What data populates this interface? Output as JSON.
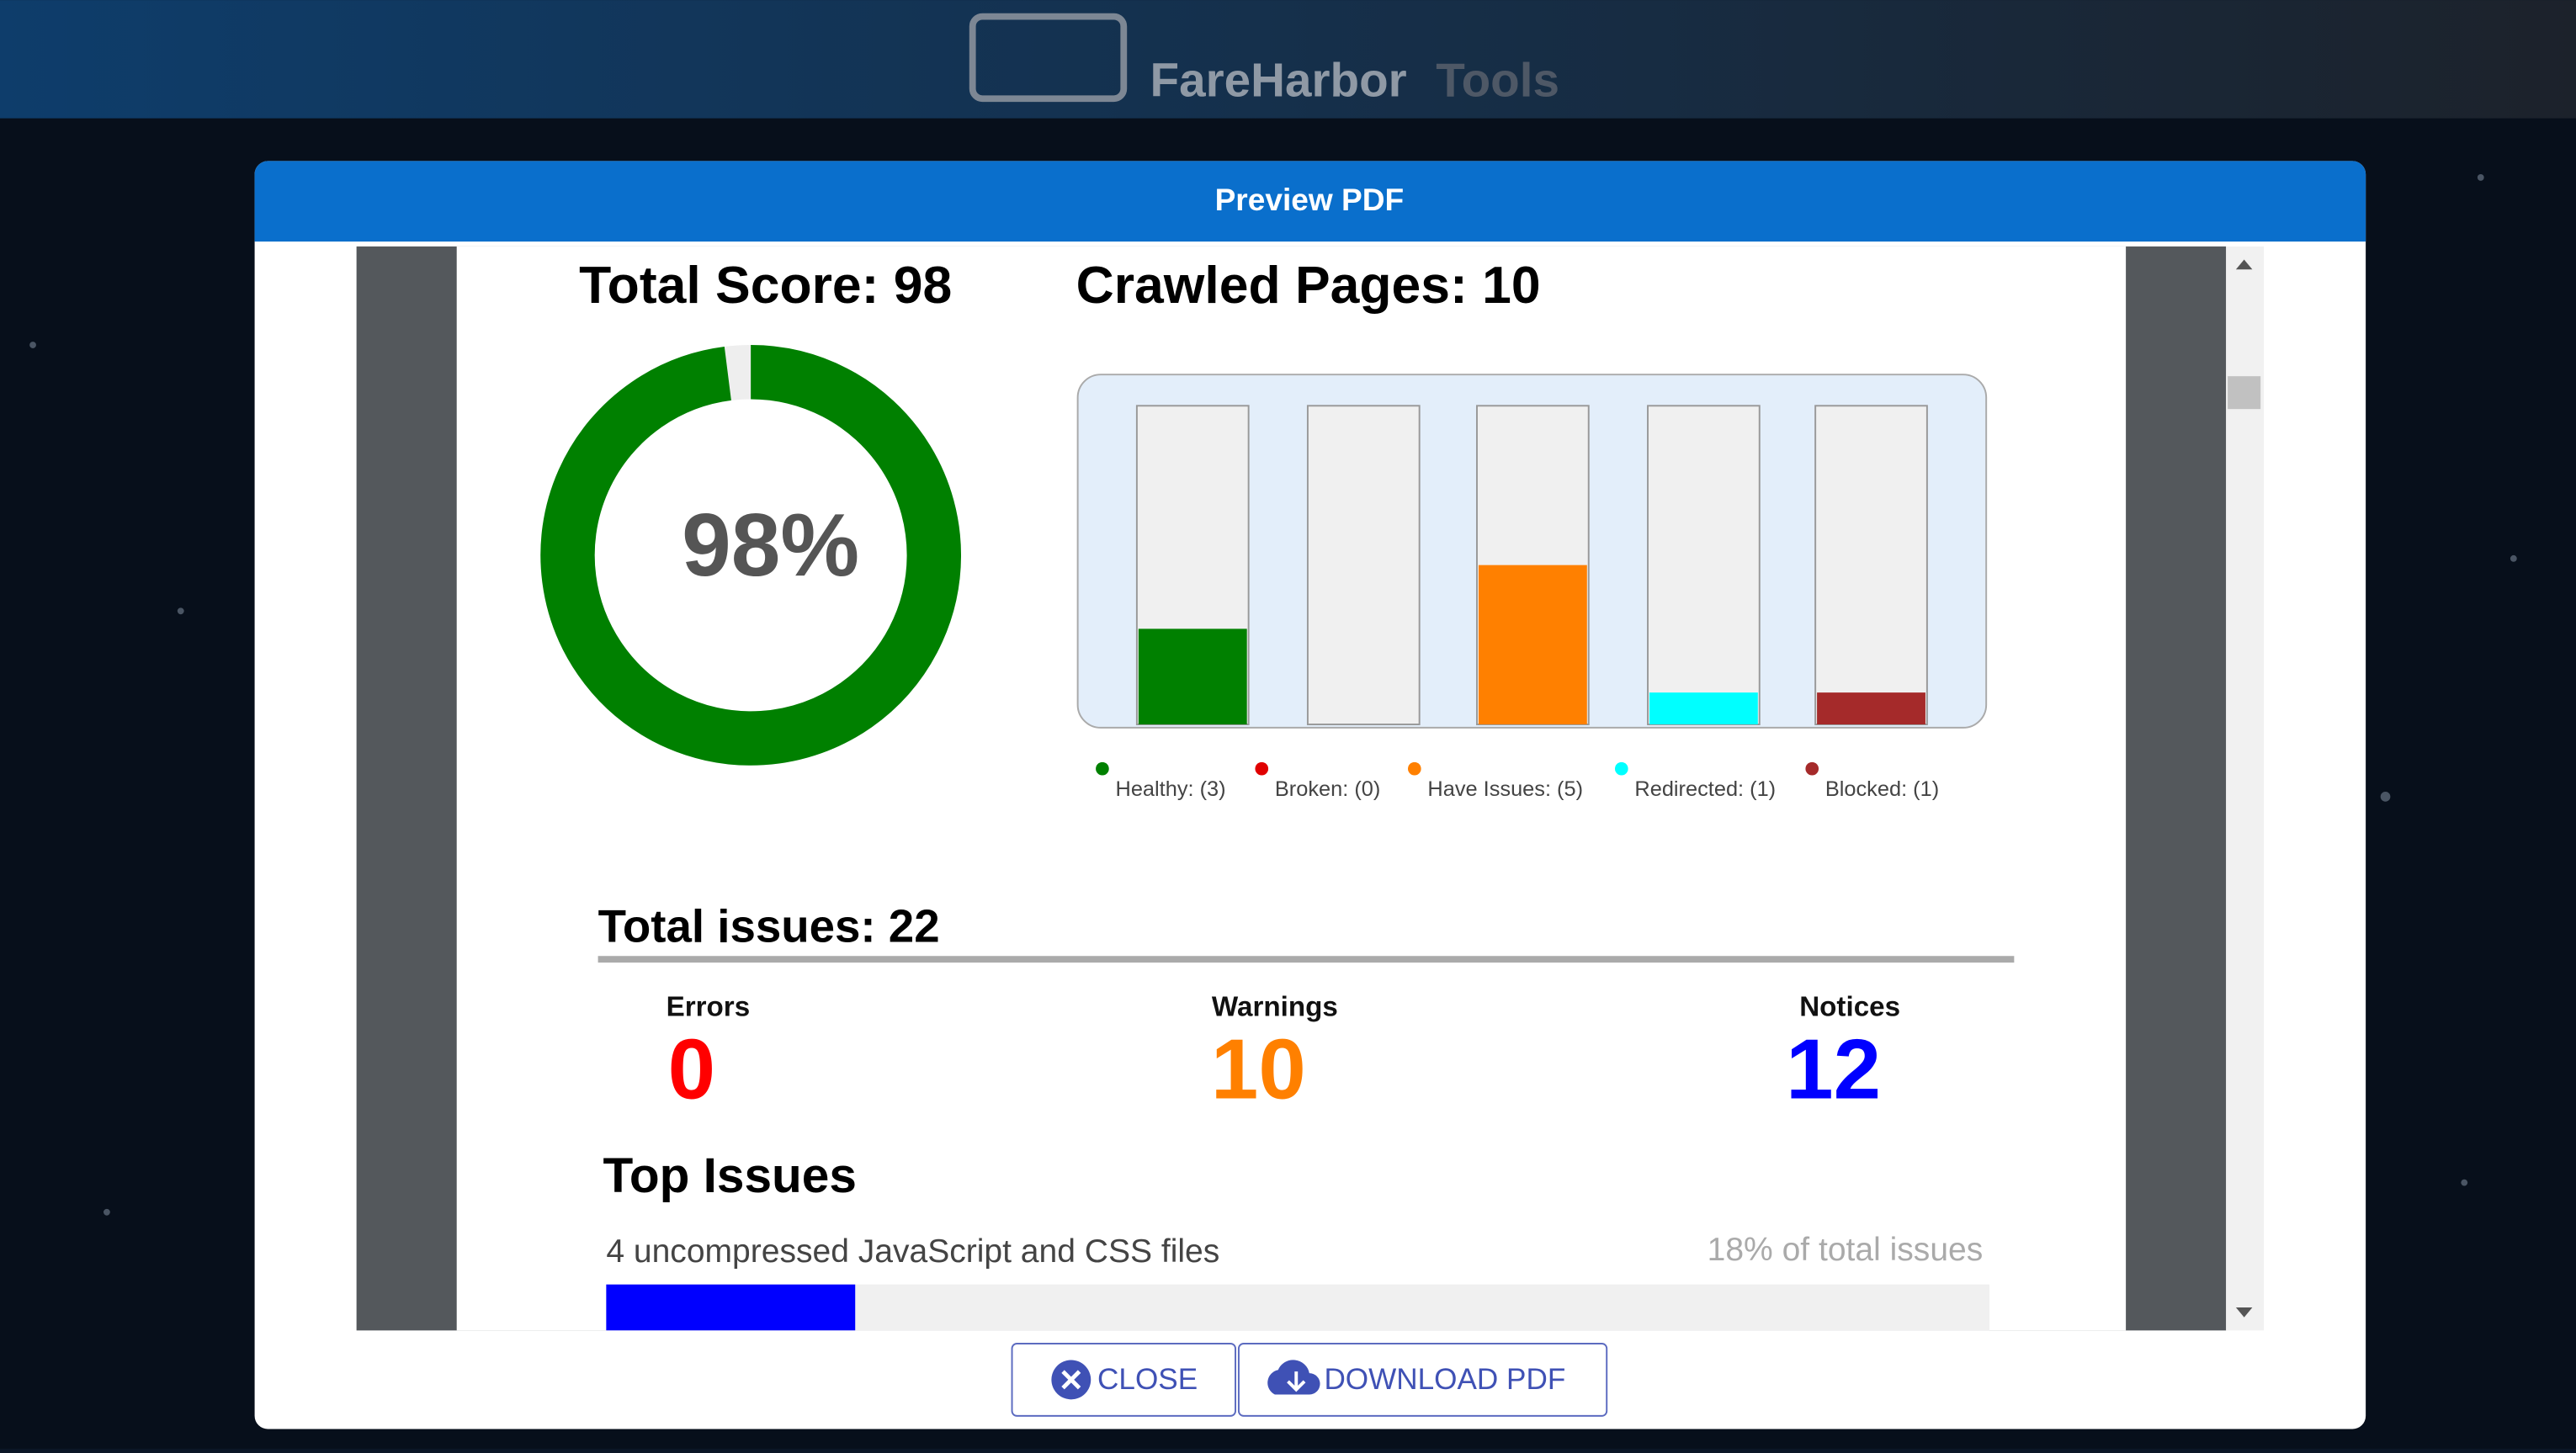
{
  "header": {
    "brand": "FareHarbor",
    "brand_suffix": "Tools"
  },
  "dialog": {
    "title": "Preview PDF",
    "close": "CLOSE",
    "download": "DOWNLOAD PDF"
  },
  "report": {
    "score": {
      "title": "Total Score: 98",
      "value": 98,
      "value_label": "98%",
      "range": [
        0,
        100
      ],
      "color": "#008000"
    },
    "crawled": {
      "type": "bar",
      "title": "Crawled Pages: 10",
      "labels": [
        "Healthy: (3)",
        "Broken: (0)",
        "Have Issues: (5)",
        "Redirected: (1)",
        "Blocked: (1)"
      ],
      "values": [
        3,
        0,
        5,
        1,
        1
      ],
      "colors": [
        "#008000",
        "#e00000",
        "#ff8000",
        "#00ffff",
        "#a52a2a"
      ],
      "ylim": [
        0,
        10
      ]
    },
    "issues": {
      "title": "Total issues: 22",
      "counts": [
        {
          "label": "Errors",
          "value": 0,
          "color": "#ff0000"
        },
        {
          "label": "Warnings",
          "value": 10,
          "color": "#ff8000"
        },
        {
          "label": "Notices",
          "value": 12,
          "color": "#0000ff"
        }
      ]
    },
    "top_issues": {
      "title": "Top Issues",
      "items": [
        {
          "text": "4 uncompressed JavaScript and CSS files",
          "share": 18,
          "share_label": "18% of total issues",
          "color": "#0000ff"
        }
      ],
      "range": [
        0,
        100
      ]
    }
  }
}
